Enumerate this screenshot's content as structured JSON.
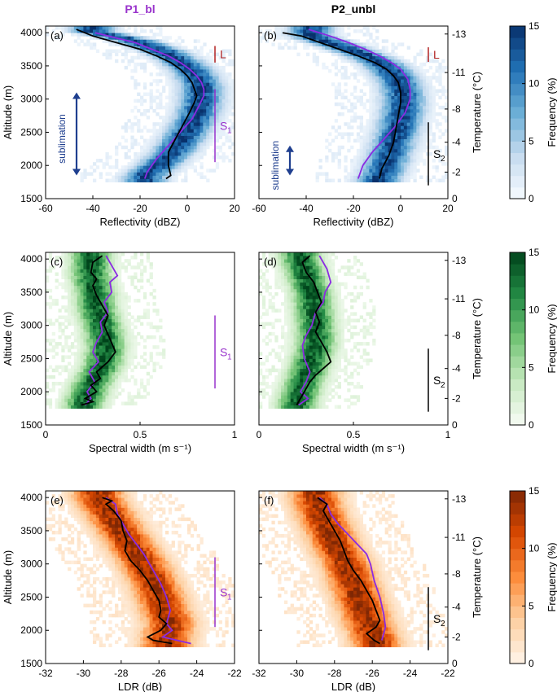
{
  "columns": [
    {
      "title": "P1_bl",
      "color": "#9933cc"
    },
    {
      "title": "P2_unbl",
      "color": "#000000"
    }
  ],
  "colors": {
    "median_black": "#000000",
    "median_purple": "#8b2be2",
    "layer_L": "#b22222",
    "layer_S1": "#9933cc",
    "layer_S2": "#000000",
    "arrow": "#1f3f8f"
  },
  "rows": [
    {
      "xlabel": "Reflectivity (dBZ)",
      "xlim": [
        -60,
        20
      ],
      "xticks": [
        -60,
        -40,
        -20,
        0,
        20
      ],
      "xticklabels": [
        "-60",
        "-40",
        "-20",
        "0",
        "20"
      ],
      "colormap": "blues",
      "colorbar": {
        "label": "Frequency (%)",
        "ticks": [
          "0",
          "5",
          "10",
          "15"
        ],
        "range": [
          0,
          15
        ]
      }
    },
    {
      "xlabel": "Spectral width (m s⁻¹)",
      "xlim": [
        0,
        1
      ],
      "xticks": [
        0,
        0.5,
        1
      ],
      "xticklabels": [
        "0",
        "0.5",
        "1"
      ],
      "colormap": "greens",
      "colorbar": {
        "label": "Frequency (%)",
        "ticks": [
          "0",
          "5",
          "10",
          "15"
        ],
        "range": [
          0,
          15
        ]
      }
    },
    {
      "xlabel": "LDR (dB)",
      "xlim": [
        -32,
        -22
      ],
      "xticks": [
        -32,
        -30,
        -28,
        -26,
        -24,
        -22
      ],
      "xticklabels": [
        "-32",
        "-30",
        "-28",
        "-26",
        "-24",
        "-22"
      ],
      "colormap": "oranges",
      "colorbar": {
        "label": "Frequency (%)",
        "ticks": [
          "0",
          "5",
          "10",
          "15"
        ],
        "range": [
          0,
          15
        ]
      }
    }
  ],
  "yaxis": {
    "label": "Altitude (m)",
    "ylim": [
      1500,
      4100
    ],
    "ticks": [
      1500,
      2000,
      2500,
      3000,
      3500,
      4000
    ],
    "ticklabels": [
      "1500",
      "2000",
      "2500",
      "3000",
      "3500",
      "4000"
    ]
  },
  "temperature_axis": {
    "label": "Temperature (°C)",
    "ticks": [
      {
        "altitude": 1500,
        "label": "0"
      },
      {
        "altitude": 1900,
        "label": "-2"
      },
      {
        "altitude": 2350,
        "label": "-4"
      },
      {
        "altitude": 2850,
        "label": "-8"
      },
      {
        "altitude": 3400,
        "label": "-11"
      },
      {
        "altitude": 3980,
        "label": "-13"
      }
    ]
  },
  "annotations": {
    "sublimation": "sublimation",
    "L": "L",
    "S1": "S",
    "S1_sub": "1",
    "S2": "S",
    "S2_sub": "2"
  },
  "chart_data": [
    {
      "panel": "(a)",
      "type": "heatmap",
      "column": 0,
      "row": 0,
      "median_black": {
        "x": [
          -47,
          -40,
          -30,
          -20,
          -13,
          -7,
          -3,
          0,
          2,
          3,
          4,
          3,
          1,
          -2,
          -5,
          -8,
          -8,
          -7,
          -9
        ],
        "y": [
          4050,
          3950,
          3850,
          3750,
          3650,
          3550,
          3450,
          3350,
          3250,
          3150,
          3050,
          2950,
          2800,
          2600,
          2400,
          2200,
          2000,
          1850,
          1800
        ]
      },
      "median_purple": {
        "x": [
          -39,
          -30,
          -22,
          -15,
          -8,
          -3,
          1,
          4,
          6,
          7,
          7,
          5,
          2,
          -3,
          -8,
          -13,
          -17,
          -18
        ],
        "y": [
          4000,
          3920,
          3850,
          3750,
          3650,
          3550,
          3450,
          3350,
          3250,
          3150,
          3050,
          2900,
          2700,
          2500,
          2300,
          2100,
          1900,
          1800
        ]
      },
      "density_peak": {
        "x": [
          -40,
          -22,
          -10,
          -2,
          3,
          6,
          6,
          4,
          0,
          -5,
          -12,
          -18
        ],
        "y": [
          4020,
          3880,
          3720,
          3560,
          3400,
          3200,
          3000,
          2750,
          2500,
          2250,
          2000,
          1850
        ]
      },
      "density_width": 9,
      "layers": [
        {
          "label": "L",
          "ytop": 3800,
          "ybottom": 3550,
          "color": "#b22222"
        },
        {
          "label": "S1",
          "ytop": 3150,
          "ybottom": 2050,
          "color": "#9933cc"
        }
      ],
      "arrow": {
        "ytop": 3100,
        "ybottom": 1850
      }
    },
    {
      "panel": "(b)",
      "type": "heatmap",
      "column": 1,
      "row": 0,
      "median_black": {
        "x": [
          -50,
          -42,
          -34,
          -26,
          -18,
          -11,
          -6,
          -3,
          -1,
          0,
          0,
          -1,
          -2,
          -3,
          -5,
          -8,
          -9
        ],
        "y": [
          4000,
          3950,
          3850,
          3750,
          3650,
          3550,
          3450,
          3350,
          3250,
          3100,
          2950,
          2750,
          2550,
          2350,
          2150,
          1950,
          1800
        ]
      },
      "median_purple": {
        "x": [
          -39,
          -30,
          -22,
          -15,
          -9,
          -4,
          0,
          3,
          4,
          4,
          2,
          -2,
          -7,
          -12,
          -16,
          -18
        ],
        "y": [
          4050,
          3950,
          3850,
          3750,
          3650,
          3550,
          3450,
          3300,
          3150,
          3000,
          2800,
          2600,
          2400,
          2200,
          2000,
          1800
        ]
      },
      "density_peak": {
        "x": [
          -38,
          -25,
          -14,
          -6,
          -1,
          1,
          1,
          -1,
          -4,
          -7,
          -10
        ],
        "y": [
          3950,
          3800,
          3650,
          3500,
          3300,
          3100,
          2850,
          2550,
          2250,
          1950,
          1750
        ]
      },
      "density_width": 9,
      "layers": [
        {
          "label": "L",
          "ytop": 3780,
          "ybottom": 3560,
          "color": "#b22222"
        },
        {
          "label": "S2",
          "ytop": 2650,
          "ybottom": 1700,
          "color": "#000000"
        }
      ],
      "arrow": {
        "ytop": 2300,
        "ybottom": 1850
      }
    },
    {
      "panel": "(c)",
      "type": "heatmap",
      "column": 0,
      "row": 1,
      "median_black": {
        "x": [
          0.3,
          0.25,
          0.24,
          0.27,
          0.25,
          0.27,
          0.3,
          0.33,
          0.31,
          0.34,
          0.37,
          0.33,
          0.27,
          0.29,
          0.24,
          0.27,
          0.21,
          0.25,
          0.19
        ],
        "y": [
          4050,
          3950,
          3800,
          3700,
          3600,
          3450,
          3300,
          3150,
          3000,
          2800,
          2600,
          2450,
          2300,
          2200,
          2100,
          2000,
          1900,
          1850,
          1800
        ]
      },
      "median_purple": {
        "x": [
          0.32,
          0.35,
          0.38,
          0.34,
          0.35,
          0.31,
          0.33,
          0.29,
          0.3,
          0.27,
          0.25,
          0.28,
          0.23,
          0.26,
          0.22,
          0.24,
          0.21
        ],
        "y": [
          4050,
          3900,
          3750,
          3650,
          3500,
          3350,
          3200,
          3050,
          2900,
          2750,
          2600,
          2450,
          2300,
          2150,
          2000,
          1900,
          1800
        ]
      },
      "density_peak": {
        "x": [
          0.24,
          0.24,
          0.26,
          0.27,
          0.3,
          0.32,
          0.3,
          0.24,
          0.2
        ],
        "y": [
          4000,
          3750,
          3500,
          3250,
          3000,
          2700,
          2400,
          2100,
          1800
        ]
      },
      "density_width": 0.1,
      "layers": [
        {
          "label": "S1",
          "ytop": 3150,
          "ybottom": 2050,
          "color": "#9933cc"
        }
      ]
    },
    {
      "panel": "(d)",
      "type": "heatmap",
      "column": 1,
      "row": 1,
      "median_black": {
        "x": [
          0.27,
          0.23,
          0.25,
          0.29,
          0.31,
          0.33,
          0.3,
          0.32,
          0.3,
          0.33,
          0.36,
          0.38,
          0.34,
          0.3,
          0.27,
          0.24,
          0.22,
          0.2
        ],
        "y": [
          4050,
          3950,
          3800,
          3650,
          3500,
          3350,
          3200,
          3050,
          2900,
          2750,
          2600,
          2450,
          2350,
          2250,
          2150,
          2000,
          1900,
          1800
        ]
      },
      "median_purple": {
        "x": [
          0.32,
          0.36,
          0.38,
          0.35,
          0.34,
          0.3,
          0.28,
          0.25,
          0.23,
          0.24,
          0.27,
          0.25,
          0.22,
          0.26,
          0.21
        ],
        "y": [
          4050,
          3850,
          3650,
          3500,
          3350,
          3200,
          3000,
          2850,
          2700,
          2500,
          2300,
          2150,
          2000,
          1900,
          1800
        ]
      },
      "density_peak": {
        "x": [
          0.22,
          0.25,
          0.28,
          0.29,
          0.3,
          0.3,
          0.27,
          0.23,
          0.2
        ],
        "y": [
          4000,
          3750,
          3500,
          3250,
          3000,
          2700,
          2400,
          2100,
          1800
        ]
      },
      "density_width": 0.1,
      "layers": [
        {
          "label": "S2",
          "ytop": 2650,
          "ybottom": 1700,
          "color": "#000000"
        }
      ]
    },
    {
      "panel": "(e)",
      "type": "heatmap",
      "column": 0,
      "row": 2,
      "median_black": {
        "x": [
          -29.0,
          -28.5,
          -28.8,
          -28.4,
          -28.0,
          -27.9,
          -27.7,
          -27.8,
          -27.5,
          -27.0,
          -26.6,
          -26.3,
          -26.0,
          -25.9,
          -26.0,
          -25.6,
          -25.9,
          -26.6,
          -26.3,
          -25.3
        ],
        "y": [
          4000,
          3950,
          3900,
          3800,
          3650,
          3500,
          3350,
          3200,
          3050,
          2900,
          2750,
          2600,
          2450,
          2300,
          2200,
          2100,
          2000,
          1900,
          1850,
          1800
        ]
      },
      "median_purple": {
        "x": [
          -28.8,
          -28.3,
          -28.2,
          -27.9,
          -27.6,
          -27.2,
          -26.8,
          -26.5,
          -26.2,
          -25.9,
          -25.6,
          -25.4,
          -25.6,
          -25.3,
          -25.8,
          -24.3
        ],
        "y": [
          4000,
          3900,
          3750,
          3600,
          3450,
          3300,
          3150,
          3000,
          2850,
          2700,
          2500,
          2300,
          2100,
          2000,
          1900,
          1800
        ]
      },
      "density_peak": {
        "x": [
          -29.2,
          -28.6,
          -28.0,
          -27.4,
          -26.8,
          -26.2,
          -25.8,
          -25.4,
          -25.6
        ],
        "y": [
          4000,
          3750,
          3500,
          3250,
          3000,
          2700,
          2400,
          2100,
          1850
        ]
      },
      "density_width": 1.3,
      "layers": [
        {
          "label": "S1",
          "ytop": 3100,
          "ybottom": 2050,
          "color": "#9933cc"
        }
      ]
    },
    {
      "panel": "(f)",
      "type": "heatmap",
      "column": 1,
      "row": 2,
      "median_black": {
        "x": [
          -28.9,
          -28.4,
          -28.6,
          -28.3,
          -28.0,
          -27.7,
          -27.5,
          -27.3,
          -27.0,
          -26.6,
          -26.3,
          -26.0,
          -25.8,
          -25.6,
          -25.8,
          -26.3,
          -25.9,
          -25.6
        ],
        "y": [
          4000,
          3900,
          3800,
          3650,
          3500,
          3350,
          3200,
          3050,
          2900,
          2750,
          2600,
          2450,
          2300,
          2150,
          2050,
          1950,
          1850,
          1800
        ]
      },
      "median_purple": {
        "x": [
          -28.8,
          -28.4,
          -28.2,
          -27.8,
          -27.3,
          -26.8,
          -26.3,
          -26.1,
          -25.9,
          -25.6,
          -25.4,
          -25.3,
          -25.5
        ],
        "y": [
          4000,
          3900,
          3750,
          3600,
          3450,
          3300,
          3150,
          3000,
          2750,
          2500,
          2250,
          2050,
          1850
        ]
      },
      "density_peak": {
        "x": [
          -29.0,
          -28.7,
          -28.3,
          -27.9,
          -27.4,
          -27.0,
          -26.6,
          -26.2,
          -25.8
        ],
        "y": [
          4000,
          3750,
          3500,
          3250,
          3000,
          2700,
          2400,
          2100,
          1850
        ]
      },
      "density_width": 1.3,
      "layers": [
        {
          "label": "S2",
          "ytop": 2650,
          "ybottom": 1700,
          "color": "#000000"
        }
      ]
    }
  ]
}
